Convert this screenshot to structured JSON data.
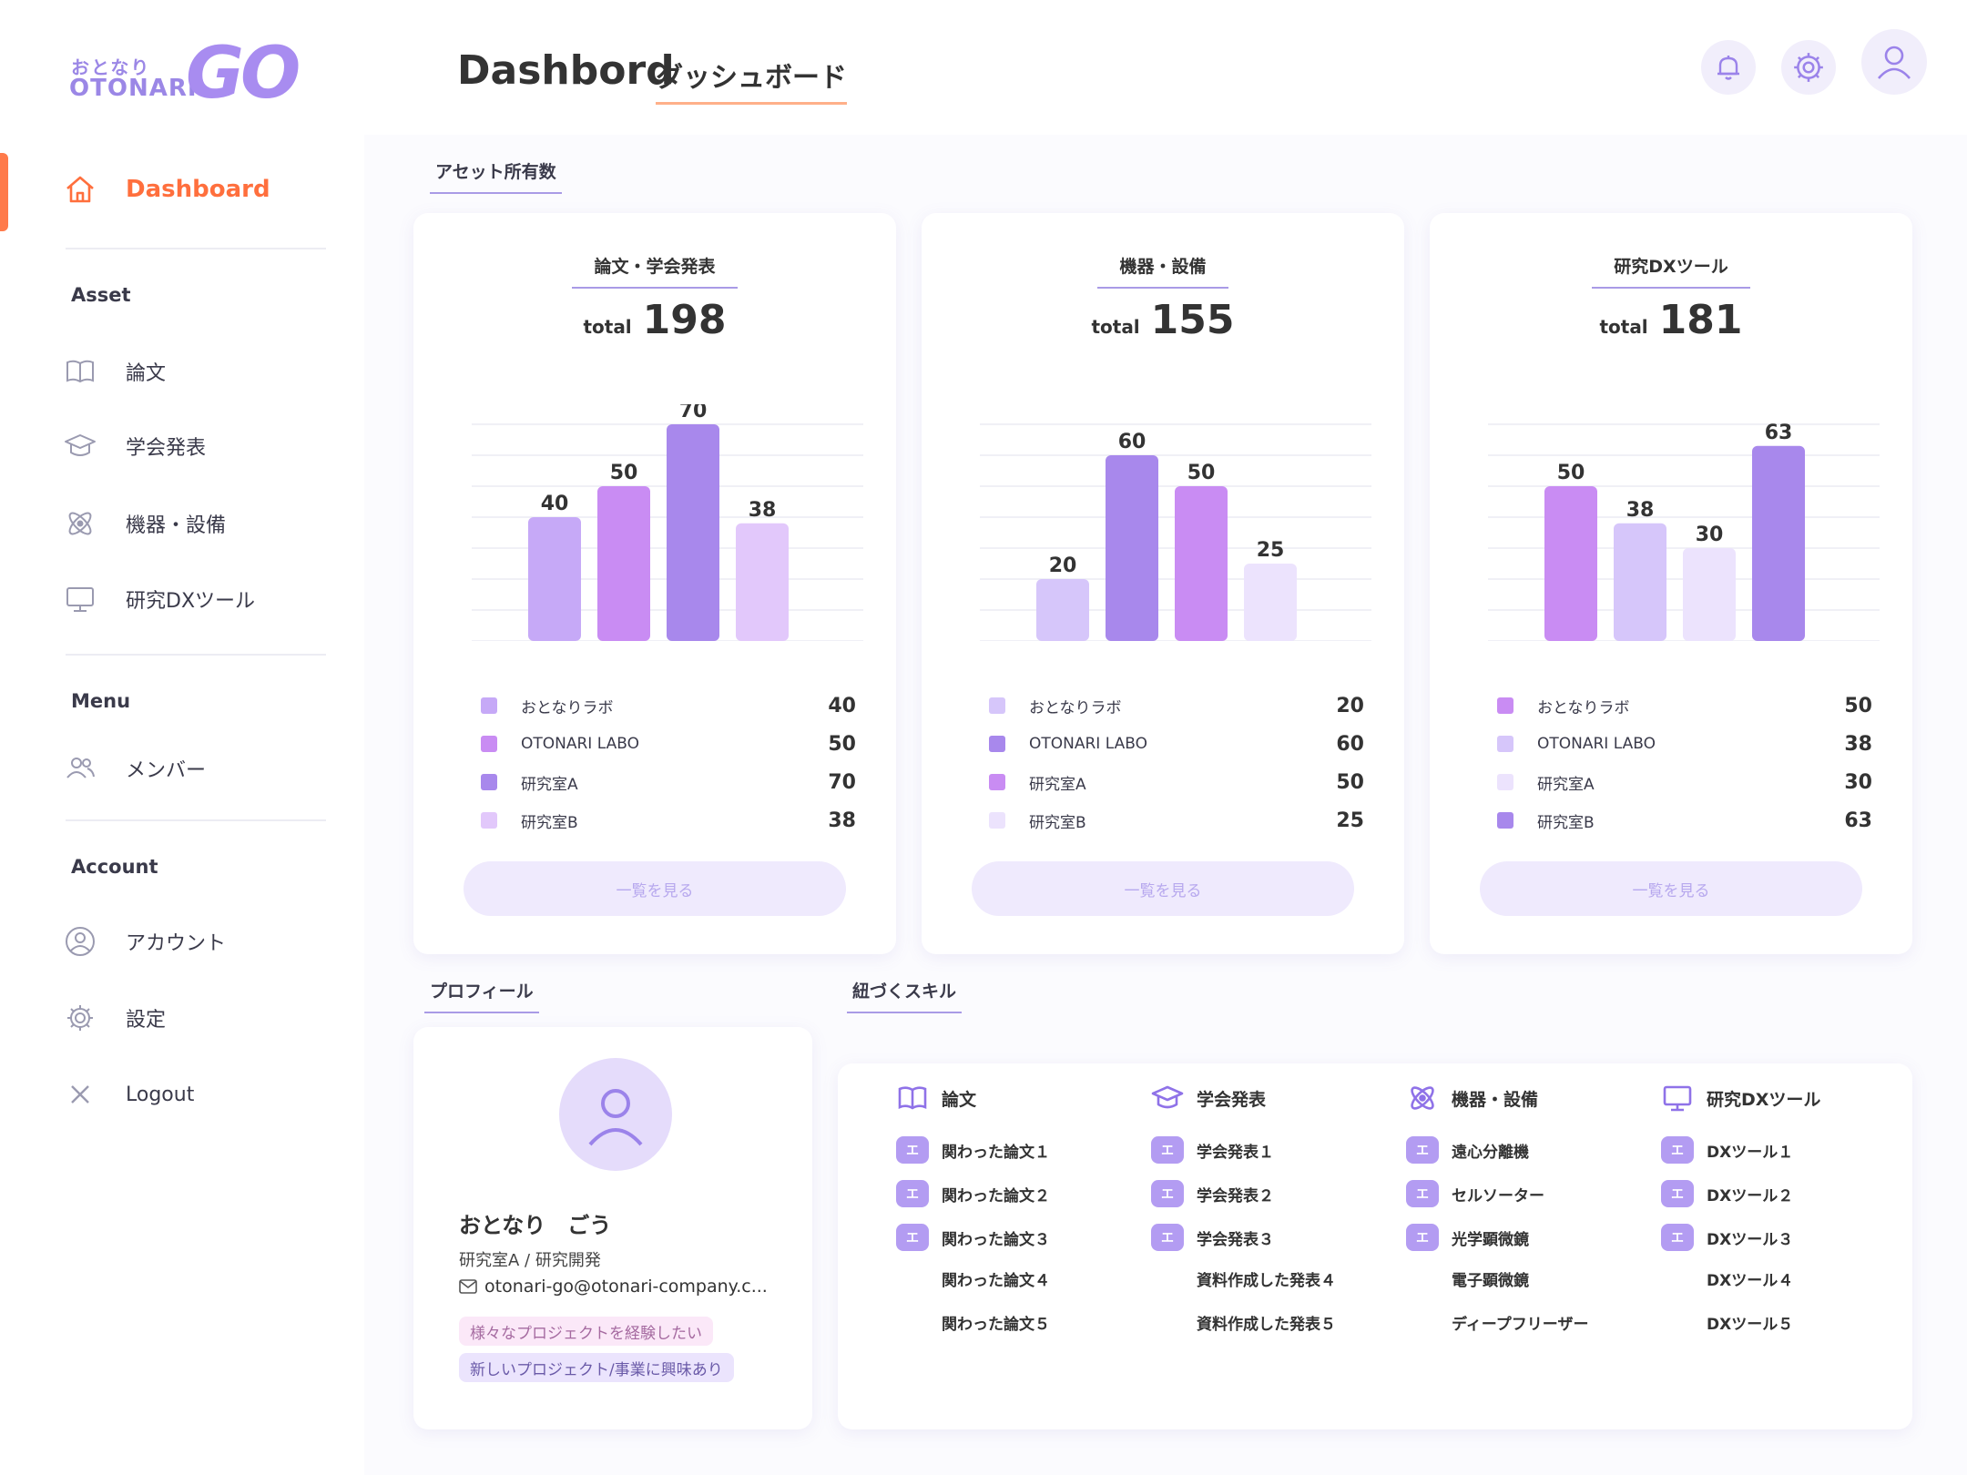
{
  "logo": {
    "small": "おとなり",
    "brand": "OTONARI",
    "go": "GO"
  },
  "sidebar": {
    "dashboard": "Dashboard",
    "sections": {
      "asset": "Asset",
      "menu": "Menu",
      "account": "Account"
    },
    "asset_items": [
      "論文",
      "学会発表",
      "機器・設備",
      "研究DXツール"
    ],
    "menu_items": [
      "メンバー"
    ],
    "account_items": [
      "アカウント",
      "設定",
      "Logout"
    ]
  },
  "header": {
    "title": "Dashbord",
    "subtitle": "ダッシュボード"
  },
  "sections": {
    "assets": "アセット所有数",
    "profile": "プロフィール",
    "skills": "紐づくスキル"
  },
  "cards": [
    {
      "title": "論文・学会発表",
      "total_label": "total",
      "total": "198",
      "button": "一覧を見る"
    },
    {
      "title": "機器・設備",
      "total_label": "total",
      "total": "155",
      "button": "一覧を見る"
    },
    {
      "title": "研究DXツール",
      "total_label": "total",
      "total": "181",
      "button": "一覧を見る"
    }
  ],
  "chart_data": [
    {
      "type": "bar",
      "title": "論文・学会発表",
      "categories": [
        "おとなりラボ",
        "OTONARI LABO",
        "研究室A",
        "研究室B"
      ],
      "values": [
        40,
        50,
        70,
        38
      ],
      "ylim": [
        0,
        70
      ],
      "grid": true,
      "colors": [
        "#c6a9f7",
        "#c98cf3",
        "#a888ec",
        "#e2c8fb"
      ]
    },
    {
      "type": "bar",
      "title": "機器・設備",
      "categories": [
        "おとなりラボ",
        "OTONARI LABO",
        "研究室A",
        "研究室B"
      ],
      "values": [
        20,
        60,
        50,
        25
      ],
      "ylim": [
        0,
        70
      ],
      "grid": true,
      "colors": [
        "#d6c6fa",
        "#a888ec",
        "#c98cf3",
        "#ece3fd"
      ]
    },
    {
      "type": "bar",
      "title": "研究DXツール",
      "categories": [
        "おとなりラボ",
        "OTONARI LABO",
        "研究室A",
        "研究室B"
      ],
      "values": [
        50,
        38,
        30,
        63
      ],
      "ylim": [
        0,
        70
      ],
      "grid": true,
      "colors": [
        "#c98cf3",
        "#d6c6fa",
        "#ece3fd",
        "#a888ec"
      ]
    }
  ],
  "profile": {
    "name": "おとなり　ごう",
    "role": "研究室A /  研究開発",
    "email": "otonari-go@otonari-company.c...",
    "tags": [
      "様々なプロジェクトを経験したい",
      "新しいプロジェクト/事業に興味あり"
    ]
  },
  "skills": {
    "badge": "エ",
    "columns": [
      {
        "title": "論文",
        "items": [
          "関わった論文１",
          "関わった論文２",
          "関わった論文３",
          "関わった論文４",
          "関わった論文５"
        ]
      },
      {
        "title": "学会発表",
        "items": [
          "学会発表１",
          "学会発表２",
          "学会発表３",
          "資料作成した発表４",
          "資料作成した発表５"
        ]
      },
      {
        "title": "機器・設備",
        "items": [
          "遠心分離機",
          "セルソーター",
          "光学顕微鏡",
          "電子顕微鏡",
          "ディープフリーザー"
        ]
      },
      {
        "title": "研究DXツール",
        "items": [
          "DXツール１",
          "DXツール２",
          "DXツール３",
          "DXツール４",
          "DXツール５"
        ]
      }
    ]
  }
}
